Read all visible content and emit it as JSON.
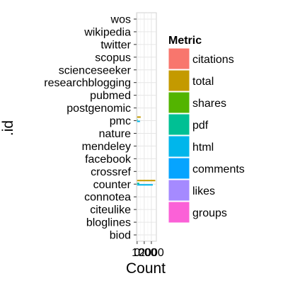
{
  "chart_data": {
    "type": "bar",
    "orientation": "horizontal",
    "stacking": "dodge",
    "xlabel": "Count",
    "ylabel": ".id",
    "categories": [
      "biod",
      "bloglines",
      "citeulike",
      "connotea",
      "counter",
      "crossref",
      "facebook",
      "mendeley",
      "nature",
      "pmc",
      "postgenomic",
      "pubmed",
      "researchblogging",
      "scienceseeker",
      "scopus",
      "twitter",
      "wikipedia",
      "wos"
    ],
    "x_tick_labels": [
      "0",
      "1000",
      "2000"
    ],
    "x_ticks": [
      0,
      1000,
      2000
    ],
    "xlim": [
      -80,
      2700
    ],
    "grid": true,
    "legend_title": "Metric",
    "legend_position": "right",
    "series": [
      {
        "name": "citations",
        "color": "#F8766D",
        "values": [
          0,
          0,
          0,
          0,
          0,
          0,
          0,
          0,
          0,
          0,
          0,
          0,
          0,
          0,
          0,
          0,
          0,
          0
        ]
      },
      {
        "name": "total",
        "color": "#C49A00",
        "values": [
          0,
          0,
          0,
          0,
          2550,
          0,
          0,
          0,
          0,
          500,
          0,
          0,
          0,
          0,
          0,
          0,
          0,
          0
        ]
      },
      {
        "name": "shares",
        "color": "#53B400",
        "values": [
          0,
          0,
          0,
          0,
          0,
          0,
          0,
          0,
          0,
          0,
          0,
          0,
          0,
          0,
          0,
          0,
          0,
          0
        ]
      },
      {
        "name": "pdf",
        "color": "#00C094",
        "values": [
          0,
          0,
          0,
          0,
          300,
          0,
          0,
          0,
          0,
          80,
          0,
          0,
          0,
          0,
          0,
          0,
          0,
          0
        ]
      },
      {
        "name": "html",
        "color": "#00B6EB",
        "values": [
          0,
          0,
          0,
          0,
          2200,
          0,
          0,
          0,
          0,
          400,
          0,
          0,
          0,
          0,
          0,
          0,
          0,
          0
        ]
      },
      {
        "name": "comments",
        "color": "#06A4FF",
        "values": [
          0,
          0,
          0,
          0,
          0,
          0,
          0,
          0,
          0,
          0,
          0,
          0,
          0,
          0,
          0,
          0,
          0,
          0
        ]
      },
      {
        "name": "likes",
        "color": "#A58AFF",
        "values": [
          0,
          0,
          0,
          0,
          0,
          0,
          0,
          0,
          0,
          0,
          0,
          0,
          0,
          0,
          0,
          0,
          0,
          0
        ]
      },
      {
        "name": "groups",
        "color": "#FB61D7",
        "values": [
          0,
          0,
          0,
          0,
          0,
          0,
          0,
          0,
          0,
          0,
          0,
          0,
          0,
          0,
          0,
          0,
          0,
          0
        ]
      }
    ],
    "legend_colors": [
      "#F8766D",
      "#C49A00",
      "#53B400",
      "#00C094",
      "#00B6EB",
      "#06A4FF",
      "#A58AFF",
      "#FB61D7"
    ]
  }
}
